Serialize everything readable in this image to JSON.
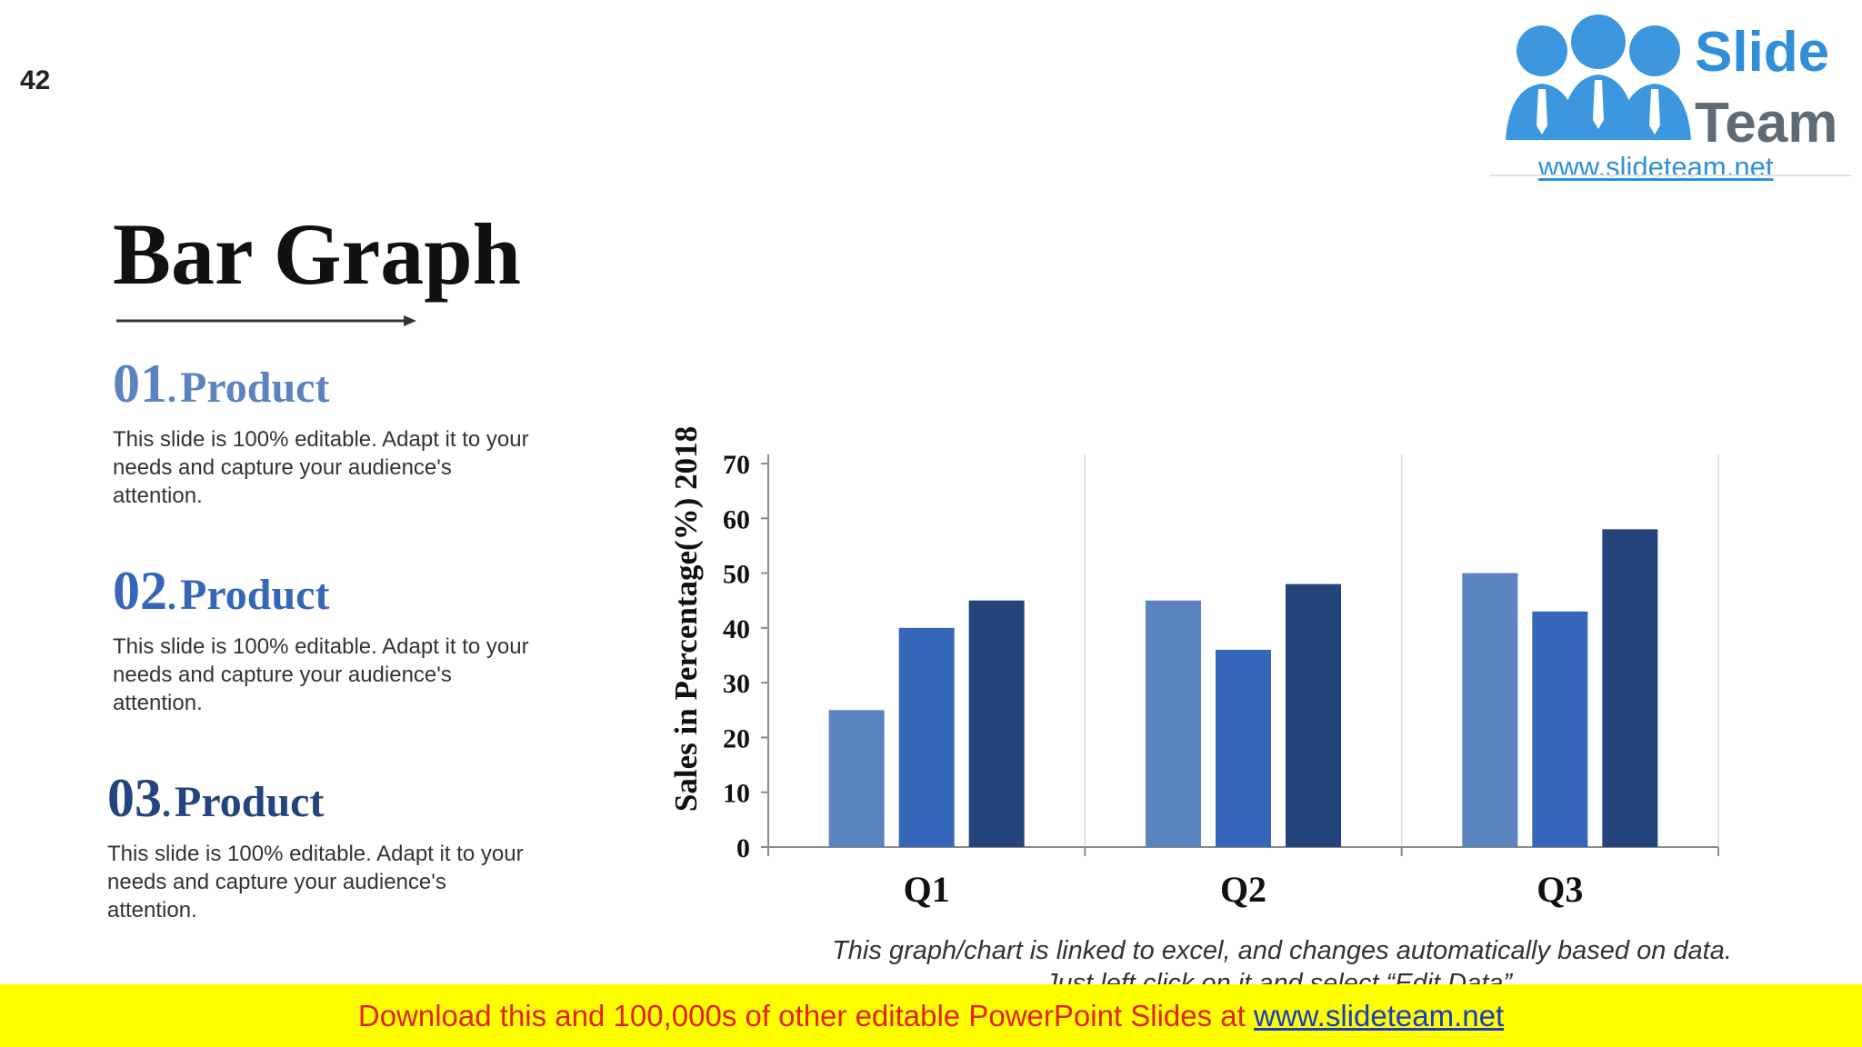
{
  "slide_number": "42",
  "logo": {
    "word1": "Slide",
    "word2": "Team",
    "url": "www.slideteam.net"
  },
  "title": "Bar Graph",
  "products": [
    {
      "num": "01",
      "dot": ".",
      "name": "Product",
      "color": "#5b83c0",
      "desc": "This slide is 100% editable. Adapt it to your needs and capture your audience's attention."
    },
    {
      "num": "02",
      "dot": ".",
      "name": "Product",
      "color": "#3566b8",
      "desc": "This slide is 100% editable. Adapt it to your needs and capture your audience's attention."
    },
    {
      "num": "03",
      "dot": ".",
      "name": "Product",
      "color": "#24457c",
      "desc": "This slide is 100% editable. Adapt it to your needs and capture your audience's attention."
    }
  ],
  "chart_data": {
    "type": "bar",
    "categories": [
      "Q1",
      "Q2",
      "Q3"
    ],
    "series": [
      {
        "values": [
          25,
          45,
          50
        ],
        "color": "#5b83c0"
      },
      {
        "values": [
          40,
          36,
          43
        ],
        "color": "#3566b8"
      },
      {
        "values": [
          45,
          48,
          58
        ],
        "color": "#24457c"
      }
    ],
    "ylabel": "Sales in Percentage(%) 2018",
    "ylim": [
      0,
      70
    ],
    "yticks": [
      0,
      10,
      20,
      30,
      40,
      50,
      60,
      70
    ],
    "grid": "vertical category separators",
    "legend": "none"
  },
  "chart_note": "This graph/chart is linked to excel, and changes automatically based on data. Just left click on it and select “Edit Data”.",
  "banner": {
    "text": "Download this and 100,000s of other editable PowerPoint Slides at ",
    "link": "www.slideteam.net"
  }
}
